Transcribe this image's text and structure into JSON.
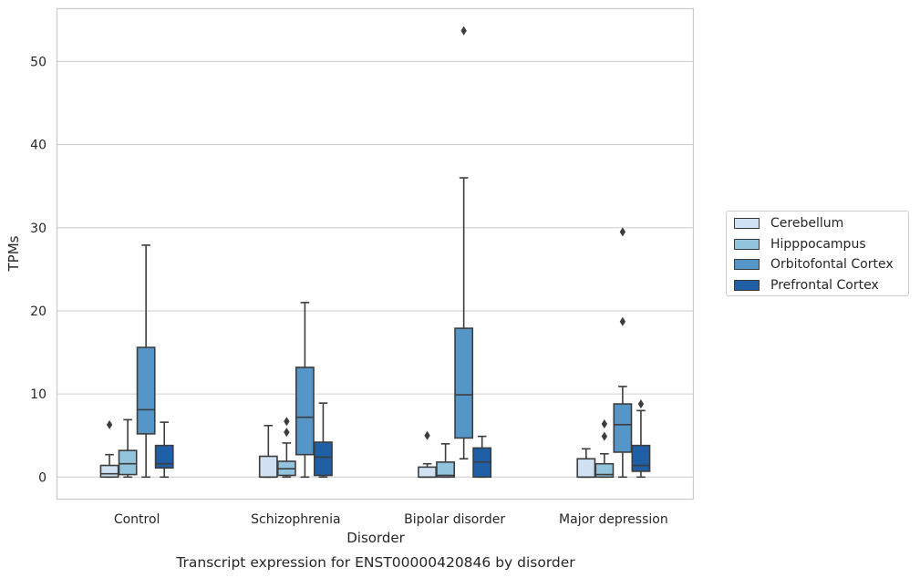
{
  "chart_data": {
    "type": "box",
    "title": "Transcript expression for ENST00000420846 by disorder",
    "xlabel": "Disorder",
    "ylabel": "TPMs",
    "ylim": [
      -2.6,
      56.3
    ],
    "yticks": [
      0,
      10,
      20,
      30,
      40,
      50
    ],
    "grid": "horizontal",
    "legend_position": "right",
    "categories": [
      "Control",
      "Schizophrenia",
      "Bipolar disorder",
      "Major depression"
    ],
    "series": [
      {
        "name": "Cerebellum",
        "color": "#cfe1f2",
        "boxes": [
          {
            "whislo": 0,
            "q1": 0,
            "med": 0.4,
            "q3": 1.4,
            "whishi": 2.7,
            "fliers": [
              6.3
            ]
          },
          {
            "whislo": 0,
            "q1": 0,
            "med": 0,
            "q3": 2.5,
            "whishi": 6.2,
            "fliers": []
          },
          {
            "whislo": 0,
            "q1": 0,
            "med": 0,
            "q3": 1.2,
            "whishi": 1.6,
            "fliers": [
              5.0
            ]
          },
          {
            "whislo": 0,
            "q1": 0,
            "med": 0,
            "q3": 2.2,
            "whishi": 3.4,
            "fliers": []
          }
        ]
      },
      {
        "name": "Hipppocampus",
        "color": "#93c4de",
        "boxes": [
          {
            "whislo": 0,
            "q1": 0.3,
            "med": 1.6,
            "q3": 3.2,
            "whishi": 6.9,
            "fliers": []
          },
          {
            "whislo": 0,
            "q1": 0.2,
            "med": 1.0,
            "q3": 1.9,
            "whishi": 4.1,
            "fliers": [
              5.4,
              6.7
            ]
          },
          {
            "whislo": 0,
            "q1": 0,
            "med": 0.2,
            "q3": 1.8,
            "whishi": 4.0,
            "fliers": []
          },
          {
            "whislo": 0,
            "q1": 0,
            "med": 0.3,
            "q3": 1.6,
            "whishi": 2.8,
            "fliers": [
              4.9,
              6.4
            ]
          }
        ]
      },
      {
        "name": "Orbitofontal Cortex",
        "color": "#5596c9",
        "boxes": [
          {
            "whislo": 0,
            "q1": 5.2,
            "med": 8.1,
            "q3": 15.6,
            "whishi": 27.9,
            "fliers": []
          },
          {
            "whislo": 0,
            "q1": 2.7,
            "med": 7.2,
            "q3": 13.2,
            "whishi": 21.0,
            "fliers": []
          },
          {
            "whislo": 2.2,
            "q1": 4.7,
            "med": 9.9,
            "q3": 17.9,
            "whishi": 36.0,
            "fliers": [
              53.7
            ]
          },
          {
            "whislo": 0,
            "q1": 3.0,
            "med": 6.3,
            "q3": 8.8,
            "whishi": 10.9,
            "fliers": [
              18.7,
              29.5
            ]
          }
        ]
      },
      {
        "name": "Prefrontal Cortex",
        "color": "#1f5fa6",
        "boxes": [
          {
            "whislo": 0,
            "q1": 1.1,
            "med": 1.6,
            "q3": 3.8,
            "whishi": 6.6,
            "fliers": []
          },
          {
            "whislo": 0,
            "q1": 0.2,
            "med": 2.4,
            "q3": 4.2,
            "whishi": 8.9,
            "fliers": []
          },
          {
            "whislo": 0,
            "q1": 0,
            "med": 1.8,
            "q3": 3.5,
            "whishi": 4.9,
            "fliers": []
          },
          {
            "whislo": 0,
            "q1": 0.7,
            "med": 1.4,
            "q3": 3.8,
            "whishi": 8.0,
            "fliers": [
              8.8
            ]
          }
        ]
      }
    ]
  }
}
